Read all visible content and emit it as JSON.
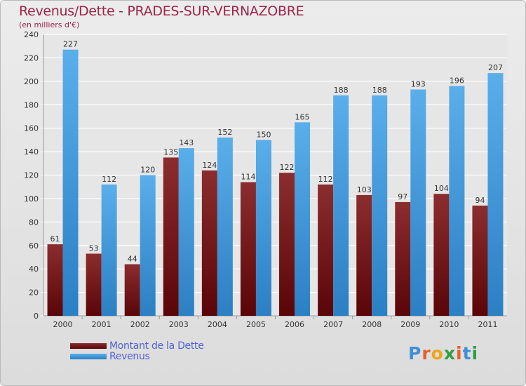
{
  "header": {
    "title": "Revenus/Dette - PRADES-SUR-VERNAZOBRE",
    "subtitle": "(en milliers d'€)"
  },
  "colors": {
    "title": "#a0234a",
    "dette": "#8b1a1f",
    "revenus": "#3d97e0",
    "legend_text": "#4f62d8"
  },
  "chart_data": {
    "type": "bar",
    "categories": [
      "2000",
      "2001",
      "2002",
      "2003",
      "2004",
      "2005",
      "2006",
      "2007",
      "2008",
      "2009",
      "2010",
      "2011"
    ],
    "series": [
      {
        "name": "Montant de la Dette",
        "values": [
          61,
          53,
          44,
          135,
          124,
          114,
          122,
          112,
          103,
          97,
          104,
          94
        ]
      },
      {
        "name": "Revenus",
        "values": [
          227,
          112,
          120,
          143,
          152,
          150,
          165,
          188,
          188,
          193,
          196,
          207
        ]
      }
    ],
    "ylim": [
      0,
      240
    ],
    "yticks": [
      0,
      20,
      40,
      60,
      80,
      100,
      120,
      140,
      160,
      180,
      200,
      220,
      240
    ],
    "grid": true,
    "legend_position": "bottom-left",
    "data_labels": true
  },
  "legend": {
    "items": [
      {
        "label": "Montant de la Dette"
      },
      {
        "label": "Revenus"
      }
    ]
  },
  "logo": {
    "text": "Proxiti",
    "colors": [
      "#3f8fd6",
      "#e85e2b",
      "#f3a21a",
      "#2e9e45",
      "#e85e2b",
      "#3f8fd6",
      "#2e9e45"
    ]
  }
}
